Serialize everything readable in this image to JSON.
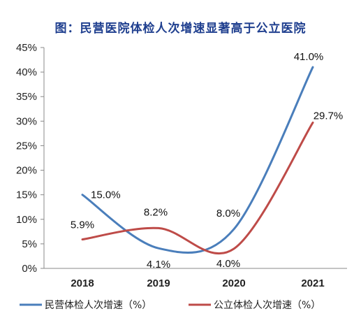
{
  "title": "图：民营医院体检人次增速显著高于公立医院",
  "chart_data": {
    "type": "line",
    "title": "图：民营医院体检人次增速显著高于公立医院",
    "x": [
      "2018",
      "2019",
      "2020",
      "2021"
    ],
    "ylim": [
      0,
      45
    ],
    "yticks": [
      "0%",
      "5%",
      "10%",
      "15%",
      "20%",
      "25%",
      "30%",
      "35%",
      "40%",
      "45%"
    ],
    "grid": false,
    "legend": "bottom",
    "series": [
      {
        "name": "民营体检人次增速（%）",
        "values": [
          15.0,
          4.1,
          8.0,
          41.0
        ],
        "labels": [
          "15.0%",
          "4.1%",
          "8.0%",
          "41.0%"
        ],
        "color": "#4a7ebb"
      },
      {
        "name": "公立体检人次增速（%）",
        "values": [
          5.9,
          8.2,
          4.0,
          29.7
        ],
        "labels": [
          "5.9%",
          "8.2%",
          "4.0%",
          "29.7%"
        ],
        "color": "#be4b48"
      }
    ]
  }
}
